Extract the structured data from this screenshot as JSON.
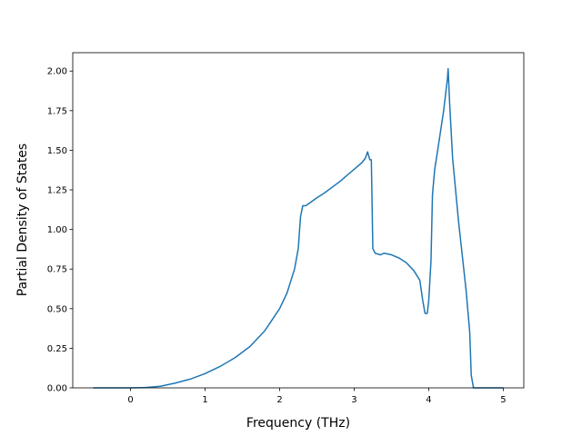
{
  "chart_data": {
    "type": "line",
    "x_label": "Frequency (THz)",
    "y_label": "Partial Density of States",
    "x": [
      -0.5,
      -0.25,
      0,
      0.2,
      0.4,
      0.6,
      0.8,
      1.0,
      1.2,
      1.4,
      1.6,
      1.8,
      2.0,
      2.1,
      2.2,
      2.25,
      2.28,
      2.31,
      2.35,
      2.5,
      2.6,
      2.8,
      3.0,
      3.1,
      3.15,
      3.18,
      3.21,
      3.23,
      3.25,
      3.28,
      3.35,
      3.4,
      3.5,
      3.6,
      3.7,
      3.8,
      3.88,
      3.92,
      3.95,
      3.98,
      4.0,
      4.03,
      4.05,
      4.08,
      4.12,
      4.2,
      4.25,
      4.26,
      4.28,
      4.32,
      4.4,
      4.5,
      4.55,
      4.57,
      4.6,
      5.0
    ],
    "series": [
      {
        "color": "#1f77b4",
        "values": [
          0,
          0,
          0,
          0.002,
          0.01,
          0.03,
          0.055,
          0.09,
          0.135,
          0.19,
          0.26,
          0.36,
          0.5,
          0.6,
          0.75,
          0.88,
          1.08,
          1.15,
          1.15,
          1.2,
          1.23,
          1.3,
          1.38,
          1.42,
          1.45,
          1.49,
          1.44,
          1.44,
          0.88,
          0.85,
          0.84,
          0.85,
          0.84,
          0.82,
          0.79,
          0.74,
          0.68,
          0.55,
          0.47,
          0.47,
          0.55,
          0.8,
          1.22,
          1.38,
          1.5,
          1.75,
          1.95,
          2.015,
          1.8,
          1.45,
          1.05,
          0.62,
          0.35,
          0.08,
          0,
          0
        ]
      }
    ],
    "xlim": [
      -0.775,
      5.275
    ],
    "ylim": [
      0,
      2.116
    ],
    "xticks": [
      0,
      1,
      2,
      3,
      4,
      5
    ],
    "yticks": [
      {
        "value": 0,
        "label": "0.00"
      },
      {
        "value": 0.25,
        "label": "0.25"
      },
      {
        "value": 0.5,
        "label": "0.50"
      },
      {
        "value": 0.75,
        "label": "0.75"
      },
      {
        "value": 1.0,
        "label": "1.00"
      },
      {
        "value": 1.25,
        "label": "1.25"
      },
      {
        "value": 1.5,
        "label": "1.50"
      },
      {
        "value": 1.75,
        "label": "1.75"
      },
      {
        "value": 2.0,
        "label": "2.00"
      }
    ]
  }
}
